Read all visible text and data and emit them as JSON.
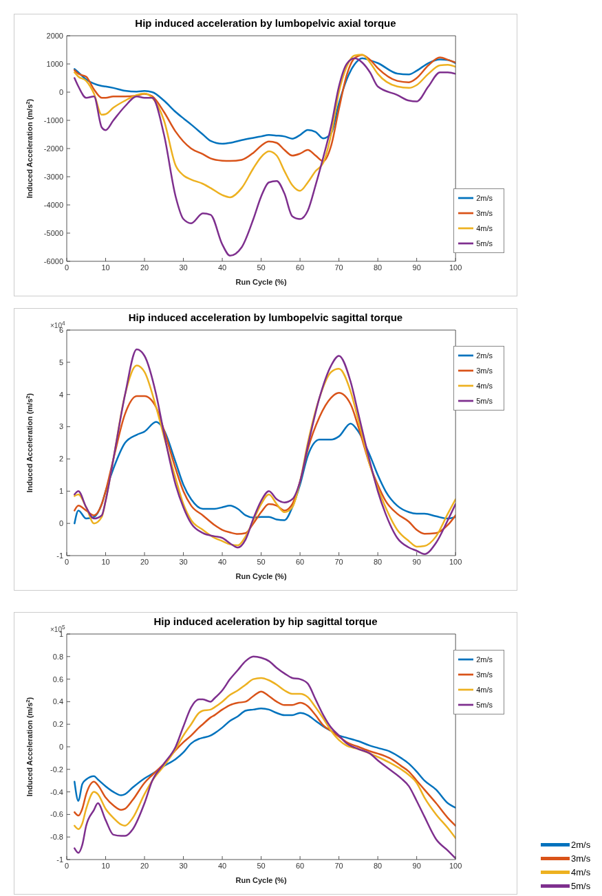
{
  "chart_data": [
    {
      "type": "line",
      "title": "Hip induced acceleration by lumbopelvic axial torque",
      "xlabel": "Run Cycle (%)",
      "ylabel": "Induced Acceleration (m/s$^{2}$)",
      "legend": "bottom right",
      "marker": "none",
      "line_style": "solid",
      "xlim": [
        0,
        100
      ],
      "xticks": [
        0,
        10,
        20,
        30,
        40,
        50,
        60,
        70,
        80,
        90,
        100
      ],
      "ylim": [
        -6000,
        2000
      ],
      "yticks": [
        -6000,
        -5000,
        -4000,
        -3000,
        -2000,
        -1000,
        0,
        1000,
        2000
      ],
      "x": [
        2,
        3,
        5,
        7,
        9,
        10,
        12,
        15,
        18,
        20,
        22,
        25,
        28,
        30,
        32,
        35,
        37,
        40,
        42,
        45,
        48,
        50,
        52,
        54,
        56,
        58,
        60,
        62,
        64,
        66,
        68,
        70,
        72,
        74,
        76,
        78,
        80,
        85,
        88,
        90,
        93,
        96,
        98,
        100
      ],
      "series": [
        {
          "name": "2m/s",
          "color": "#0072bd",
          "values": [
            820,
            700,
            450,
            300,
            220,
            200,
            150,
            50,
            20,
            40,
            0,
            -300,
            -700,
            -930,
            -1150,
            -1500,
            -1730,
            -1830,
            -1800,
            -1700,
            -1620,
            -1570,
            -1520,
            -1540,
            -1570,
            -1650,
            -1520,
            -1340,
            -1410,
            -1640,
            -1460,
            -400,
            450,
            980,
            1200,
            1130,
            1030,
            660,
            630,
            760,
            1030,
            1160,
            1140,
            1030
          ]
        },
        {
          "name": "3m/s",
          "color": "#d95319",
          "values": [
            780,
            650,
            550,
            100,
            -200,
            -200,
            -150,
            -150,
            -120,
            -60,
            -150,
            -700,
            -1400,
            -1750,
            -2000,
            -2200,
            -2350,
            -2430,
            -2440,
            -2400,
            -2150,
            -1900,
            -1750,
            -1800,
            -2050,
            -2250,
            -2180,
            -2050,
            -2250,
            -2450,
            -1900,
            -600,
            600,
            1200,
            1320,
            1150,
            850,
            400,
            350,
            500,
            950,
            1230,
            1150,
            1050
          ]
        },
        {
          "name": "4m/s",
          "color": "#edb120",
          "values": [
            700,
            550,
            400,
            -50,
            -800,
            -780,
            -550,
            -300,
            -100,
            -50,
            -200,
            -1000,
            -2600,
            -2950,
            -3100,
            -3250,
            -3400,
            -3650,
            -3730,
            -3400,
            -2700,
            -2300,
            -2100,
            -2250,
            -2800,
            -3300,
            -3500,
            -3200,
            -2800,
            -2500,
            -1500,
            0,
            900,
            1300,
            1330,
            1050,
            650,
            200,
            150,
            250,
            650,
            950,
            970,
            900
          ]
        },
        {
          "name": "5m/s",
          "color": "#7e2f8e",
          "values": [
            500,
            200,
            -200,
            -150,
            -1250,
            -1350,
            -1000,
            -500,
            -150,
            -200,
            -200,
            -1500,
            -3700,
            -4500,
            -4650,
            -4300,
            -4350,
            -5400,
            -5800,
            -5500,
            -4500,
            -3700,
            -3200,
            -3150,
            -3600,
            -4400,
            -4500,
            -4200,
            -3300,
            -2300,
            -1200,
            200,
            1000,
            1200,
            1050,
            700,
            200,
            -100,
            -300,
            -330,
            200,
            700,
            700,
            650
          ]
        }
      ]
    },
    {
      "type": "line",
      "title": "Hip induced acceleration by lumbopelvic sagittal torque",
      "xlabel": "Run Cycle (%)",
      "ylabel": "Induced Acceleration (m/s$^{2}$)",
      "annotations": [
        "×10$^{4}$"
      ],
      "legend": "top right",
      "marker": "none",
      "line_style": "solid",
      "xlim": [
        0,
        100
      ],
      "xticks": [
        0,
        10,
        20,
        30,
        40,
        50,
        60,
        70,
        80,
        90,
        100
      ],
      "ylim": [
        -1,
        6
      ],
      "yticks": [
        -1,
        0,
        1,
        2,
        3,
        4,
        5,
        6
      ],
      "x": [
        2,
        3,
        5,
        7,
        9,
        10,
        12,
        15,
        18,
        20,
        23,
        25,
        28,
        30,
        32,
        35,
        38,
        40,
        42,
        44,
        46,
        48,
        50,
        52,
        54,
        56,
        58,
        60,
        62,
        65,
        68,
        70,
        73,
        75,
        78,
        80,
        82,
        85,
        88,
        90,
        92,
        95,
        98,
        100
      ],
      "series": [
        {
          "name": "2m/s",
          "color": "#0072bd",
          "values": [
            0,
            0.4,
            0.15,
            0.2,
            0.6,
            1.0,
            1.7,
            2.5,
            2.75,
            2.85,
            3.15,
            2.9,
            1.9,
            1.2,
            0.75,
            0.45,
            0.45,
            0.5,
            0.55,
            0.45,
            0.25,
            0.18,
            0.2,
            0.2,
            0.12,
            0.1,
            0.5,
            1.2,
            2.1,
            2.6,
            2.6,
            2.7,
            3.1,
            2.85,
            2.1,
            1.5,
            1.0,
            0.55,
            0.35,
            0.3,
            0.3,
            0.22,
            0.15,
            0.2
          ]
        },
        {
          "name": "3m/s",
          "color": "#d95319",
          "values": [
            0.4,
            0.55,
            0.4,
            0.25,
            0.6,
            1.0,
            2.0,
            3.4,
            3.95,
            3.95,
            3.6,
            2.9,
            1.7,
            1.0,
            0.55,
            0.25,
            -0.05,
            -0.2,
            -0.28,
            -0.33,
            -0.3,
            0.0,
            0.35,
            0.6,
            0.55,
            0.4,
            0.6,
            1.3,
            2.3,
            3.3,
            3.9,
            4.05,
            3.7,
            3.0,
            1.8,
            1.2,
            0.7,
            0.3,
            0.05,
            -0.2,
            -0.32,
            -0.3,
            -0.05,
            0.25
          ]
        },
        {
          "name": "4m/s",
          "color": "#edb120",
          "values": [
            0.85,
            0.9,
            0.5,
            0.0,
            0.2,
            0.7,
            2.0,
            4.0,
            4.9,
            4.7,
            3.6,
            2.7,
            1.4,
            0.6,
            0.1,
            -0.2,
            -0.45,
            -0.55,
            -0.65,
            -0.68,
            -0.4,
            0.1,
            0.6,
            0.9,
            0.6,
            0.35,
            0.5,
            1.3,
            2.5,
            3.9,
            4.7,
            4.8,
            4.1,
            3.2,
            1.8,
            1.1,
            0.5,
            -0.2,
            -0.55,
            -0.72,
            -0.7,
            -0.4,
            0.3,
            0.75
          ]
        },
        {
          "name": "5m/s",
          "color": "#7e2f8e",
          "values": [
            0.9,
            1.0,
            0.5,
            0.15,
            0.25,
            0.7,
            2.0,
            4.0,
            5.4,
            5.2,
            4.0,
            2.8,
            1.2,
            0.5,
            0.0,
            -0.3,
            -0.4,
            -0.45,
            -0.62,
            -0.75,
            -0.5,
            0.15,
            0.7,
            1.0,
            0.75,
            0.65,
            0.75,
            1.3,
            2.4,
            3.9,
            4.9,
            5.2,
            4.4,
            3.4,
            1.9,
            1.0,
            0.3,
            -0.45,
            -0.75,
            -0.85,
            -0.95,
            -0.6,
            0.1,
            0.6
          ]
        }
      ]
    },
    {
      "type": "line",
      "title": "Hip induced aceleration by hip sagittal torque",
      "xlabel": "Run Cycle (%)",
      "ylabel": "Induced Acceleration (m/s$^{2}$)",
      "annotations": [
        "×10$^{5}$"
      ],
      "legend": "top right",
      "marker": "none",
      "line_style": "solid",
      "xlim": [
        0,
        100
      ],
      "xticks": [
        0,
        10,
        20,
        30,
        40,
        50,
        60,
        70,
        80,
        90,
        100
      ],
      "ylim": [
        -1,
        1
      ],
      "yticks": [
        -1,
        -0.8,
        -0.6,
        -0.4,
        -0.2,
        0,
        0.2,
        0.4,
        0.6,
        0.8,
        1
      ],
      "x": [
        2,
        3,
        4,
        5,
        7,
        8,
        10,
        12,
        14,
        15,
        17,
        20,
        22,
        25,
        28,
        30,
        32,
        34,
        35,
        37,
        38,
        40,
        42,
        44,
        46,
        48,
        50,
        52,
        54,
        56,
        58,
        60,
        62,
        64,
        66,
        68,
        70,
        72,
        75,
        78,
        80,
        83,
        86,
        88,
        90,
        92,
        95,
        98,
        100
      ],
      "series": [
        {
          "name": "2m/s",
          "color": "#0072bd",
          "values": [
            -0.31,
            -0.48,
            -0.33,
            -0.29,
            -0.26,
            -0.29,
            -0.35,
            -0.4,
            -0.43,
            -0.42,
            -0.36,
            -0.28,
            -0.24,
            -0.17,
            -0.11,
            -0.05,
            0.03,
            0.07,
            0.08,
            0.1,
            0.12,
            0.17,
            0.23,
            0.27,
            0.32,
            0.33,
            0.34,
            0.33,
            0.3,
            0.28,
            0.28,
            0.3,
            0.28,
            0.23,
            0.18,
            0.14,
            0.1,
            0.08,
            0.05,
            0.01,
            -0.01,
            -0.04,
            -0.1,
            -0.15,
            -0.22,
            -0.3,
            -0.38,
            -0.5,
            -0.54
          ]
        },
        {
          "name": "3m/s",
          "color": "#d95319",
          "values": [
            -0.58,
            -0.61,
            -0.55,
            -0.42,
            -0.31,
            -0.34,
            -0.45,
            -0.52,
            -0.56,
            -0.55,
            -0.47,
            -0.32,
            -0.25,
            -0.15,
            -0.03,
            0.04,
            0.1,
            0.17,
            0.2,
            0.26,
            0.28,
            0.33,
            0.37,
            0.39,
            0.4,
            0.45,
            0.49,
            0.45,
            0.4,
            0.37,
            0.37,
            0.39,
            0.36,
            0.28,
            0.19,
            0.14,
            0.09,
            0.04,
            0.0,
            -0.04,
            -0.06,
            -0.1,
            -0.17,
            -0.22,
            -0.3,
            -0.38,
            -0.5,
            -0.63,
            -0.7
          ]
        },
        {
          "name": "4m/s",
          "color": "#edb120",
          "values": [
            -0.7,
            -0.73,
            -0.68,
            -0.55,
            -0.4,
            -0.42,
            -0.55,
            -0.63,
            -0.69,
            -0.7,
            -0.63,
            -0.42,
            -0.3,
            -0.17,
            -0.02,
            0.1,
            0.2,
            0.3,
            0.32,
            0.33,
            0.35,
            0.4,
            0.46,
            0.5,
            0.55,
            0.6,
            0.61,
            0.59,
            0.55,
            0.5,
            0.47,
            0.47,
            0.44,
            0.35,
            0.25,
            0.14,
            0.06,
            0.01,
            -0.02,
            -0.06,
            -0.09,
            -0.14,
            -0.2,
            -0.25,
            -0.32,
            -0.45,
            -0.6,
            -0.72,
            -0.81
          ]
        },
        {
          "name": "5m/s",
          "color": "#7e2f8e",
          "values": [
            -0.9,
            -0.94,
            -0.87,
            -0.7,
            -0.56,
            -0.5,
            -0.65,
            -0.78,
            -0.79,
            -0.79,
            -0.73,
            -0.5,
            -0.3,
            -0.15,
            0.0,
            0.18,
            0.35,
            0.42,
            0.42,
            0.4,
            0.43,
            0.5,
            0.6,
            0.68,
            0.76,
            0.8,
            0.79,
            0.76,
            0.7,
            0.65,
            0.61,
            0.6,
            0.56,
            0.42,
            0.28,
            0.17,
            0.1,
            0.03,
            -0.02,
            -0.06,
            -0.12,
            -0.2,
            -0.28,
            -0.35,
            -0.48,
            -0.62,
            -0.82,
            -0.92,
            -0.99
          ]
        }
      ]
    }
  ]
}
